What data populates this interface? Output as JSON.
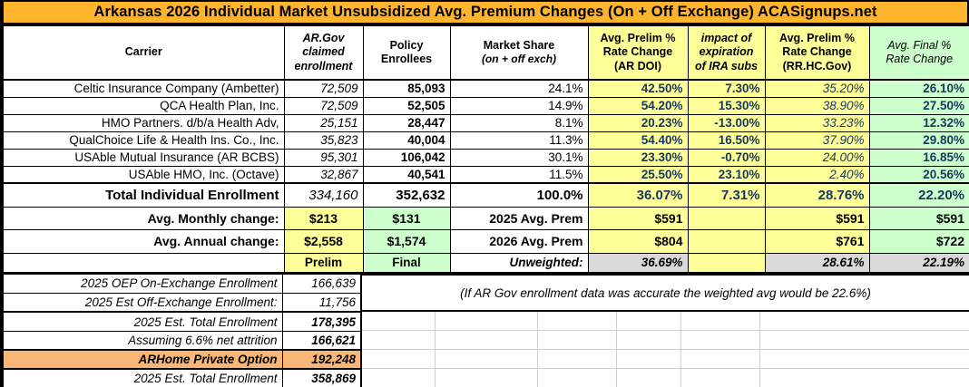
{
  "title": "Arkansas 2026 Individual Market Unsubsidized Avg. Premium Changes (On + Off Exchange) ACASignups.net",
  "colors": {
    "title_bg": "#FFB42E",
    "yellow_cell": "#FFFF99",
    "green_cell": "#CCFFCC",
    "gray_cell": "#D9D9D9",
    "arhome_highlight": "#F9B777",
    "navy_text": "#17375E"
  },
  "header": {
    "carrier": "Carrier",
    "argov": "AR.Gov claimed enrollment",
    "policy": "Policy Enrollees",
    "market_title": "Market Share",
    "market_sub": "(on + off exch)",
    "ardoi": "Avg. Prelim % Rate Change (AR DOI)",
    "impact": "impact of expiration of IRA subs",
    "rrhc": "Avg. Prelim % Rate Change (RR.HC.Gov)",
    "final": "Avg. Final % Rate Change"
  },
  "carriers": [
    {
      "name": "Celtic Insurance Company (Ambetter)",
      "argov": "72,509",
      "policy": "85,093",
      "share": "24.1%",
      "ardoi": "42.50%",
      "impact": "7.30%",
      "rrhc": "35.20%",
      "final": "26.10%"
    },
    {
      "name": "QCA Health Plan, Inc.",
      "argov": "72,509",
      "policy": "52,505",
      "share": "14.9%",
      "ardoi": "54.20%",
      "impact": "15.30%",
      "rrhc": "38.90%",
      "final": "27.50%"
    },
    {
      "name": "HMO Partners. d/b/a Health Adv,",
      "argov": "25,151",
      "policy": "28,447",
      "share": "8.1%",
      "ardoi": "20.23%",
      "impact": "-13.00%",
      "rrhc": "33.23%",
      "final": "12.32%"
    },
    {
      "name": "QualChoice Life & Health Ins. Co., Inc.",
      "argov": "35,823",
      "policy": "40,004",
      "share": "11.3%",
      "ardoi": "54.40%",
      "impact": "16.50%",
      "rrhc": "37.90%",
      "final": "29.80%"
    },
    {
      "name": "USAble Mutual Insurance (AR BCBS)",
      "argov": "95,301",
      "policy": "106,042",
      "share": "30.1%",
      "ardoi": "23.30%",
      "impact": "-0.70%",
      "rrhc": "24.00%",
      "final": "16.85%"
    },
    {
      "name": "USAble HMO, Inc. (Octave)",
      "argov": "32,867",
      "policy": "40,541",
      "share": "11.5%",
      "ardoi": "25.50%",
      "impact": "23.10%",
      "rrhc": "2.40%",
      "final": "20.56%"
    }
  ],
  "total": {
    "label": "Total Individual Enrollment",
    "argov": "334,160",
    "policy": "352,632",
    "share": "100.0%",
    "ardoi": "36.07%",
    "impact": "7.31%",
    "rrhc": "28.76%",
    "final": "22.20%"
  },
  "monthly": {
    "label": "Avg. Monthly change:",
    "argov_change": "$213",
    "policy_change": "$131",
    "prem_label": "2025 Avg. Prem",
    "ardoi_prem": "$591",
    "rrhc_prem": "$591",
    "final_prem": "$591"
  },
  "annual": {
    "label": "Avg. Annual change:",
    "argov_change": "$2,558",
    "policy_change": "$1,574",
    "prem_label": "2026 Avg. Prem",
    "ardoi_prem": "$804",
    "rrhc_prem": "$761",
    "final_prem": "$722"
  },
  "prelim_final": {
    "prelim": "Prelim",
    "final": "Final",
    "unweighted_label": "Unweighted:",
    "ardoi": "36.69%",
    "rrhc": "28.61%",
    "final_pct": "22.19%"
  },
  "note": "(If AR Gov enrollment data was accurate the weighted avg would be 22.6%)",
  "bottom_rows": [
    {
      "label": "2025 OEP On-Exchange Enrollment",
      "value": "166,639"
    },
    {
      "label": "2025 Est Off-Exchange Enrollment:",
      "value": "11,756"
    },
    {
      "label": "2025 Est. Total Enrollment",
      "value": "178,395"
    },
    {
      "label": "Assuming 6.6% net attrition",
      "value": "166,621"
    },
    {
      "label": "ARHome Private Option",
      "value": "192,248"
    },
    {
      "label": "2025 Est. Total Enrollment",
      "value": "358,869"
    }
  ]
}
